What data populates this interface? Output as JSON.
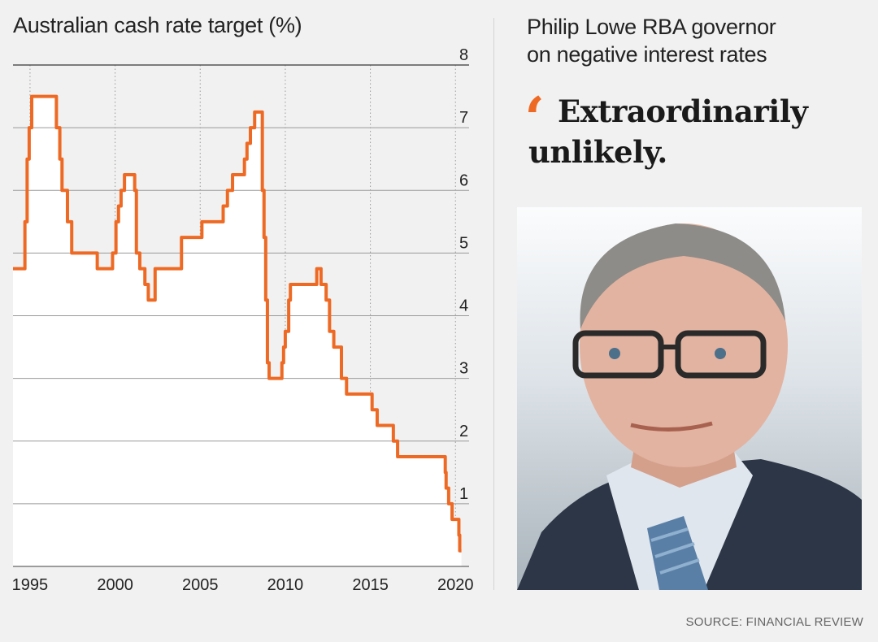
{
  "chart_title": "Australian cash rate target (%)",
  "quote": {
    "heading_line1": "Philip Lowe RBA governor",
    "heading_line2": "on negative interest rates",
    "text": "Extraordinarily unlikely."
  },
  "source": "SOURCE: FINANCIAL REVIEW",
  "colors": {
    "line": "#ee6a24",
    "quote_mark": "#ee6a24",
    "grid": "#9a9a9a",
    "background": "#f1f1f1"
  },
  "icons": {
    "quote_mark": "opening-quote-icon",
    "portrait": "portrait-photo"
  },
  "chart_data": {
    "type": "area",
    "title": "Australian cash rate target (%)",
    "xlabel": "",
    "ylabel": "",
    "xlim": [
      1994,
      2020.8
    ],
    "ylim": [
      0,
      8
    ],
    "x_ticks": [
      1995,
      2000,
      2005,
      2010,
      2015,
      2020
    ],
    "x_tick_labels": [
      "1995",
      "2000",
      "2005",
      "2010",
      "2015",
      "2020"
    ],
    "y_ticks": [
      1,
      2,
      3,
      4,
      5,
      6,
      7,
      8
    ],
    "y_tick_labels": [
      "1",
      "2",
      "3",
      "4",
      "5",
      "6",
      "7",
      "8"
    ],
    "grid": "horizontal solid, vertical dotted",
    "series": [
      {
        "step": true,
        "x": [
          1994.0,
          1994.7,
          1994.83,
          1994.95,
          1995.1,
          1996.55,
          1996.75,
          1996.88,
          1997.2,
          1997.45,
          1998.95,
          1999.85,
          2000.05,
          2000.2,
          2000.35,
          2000.55,
          2001.15,
          2001.25,
          2001.45,
          2001.75,
          2001.95,
          2002.35,
          2003.9,
          2005.1,
          2006.35,
          2006.6,
          2006.9,
          2007.6,
          2007.75,
          2007.95,
          2008.2,
          2008.65,
          2008.75,
          2008.85,
          2008.95,
          2009.05,
          2009.8,
          2009.9,
          2010.0,
          2010.2,
          2010.3,
          2011.85,
          2012.1,
          2012.4,
          2012.6,
          2012.85,
          2013.3,
          2013.6,
          2015.1,
          2015.4,
          2016.35,
          2016.6,
          2019.4,
          2019.45,
          2019.6,
          2019.8,
          2020.2,
          2020.25
        ],
        "values": [
          4.75,
          5.5,
          6.5,
          7.0,
          7.5,
          7.0,
          6.5,
          6.0,
          5.5,
          5.0,
          4.75,
          5.0,
          5.5,
          5.75,
          6.0,
          6.25,
          6.0,
          5.0,
          4.75,
          4.5,
          4.25,
          4.75,
          5.25,
          5.5,
          5.75,
          6.0,
          6.25,
          6.5,
          6.75,
          7.0,
          7.25,
          6.0,
          5.25,
          4.25,
          3.25,
          3.0,
          3.25,
          3.5,
          3.75,
          4.25,
          4.5,
          4.75,
          4.5,
          4.25,
          3.75,
          3.5,
          3.0,
          2.75,
          2.5,
          2.25,
          2.0,
          1.75,
          1.5,
          1.25,
          1.0,
          0.75,
          0.5,
          0.25
        ]
      }
    ]
  }
}
